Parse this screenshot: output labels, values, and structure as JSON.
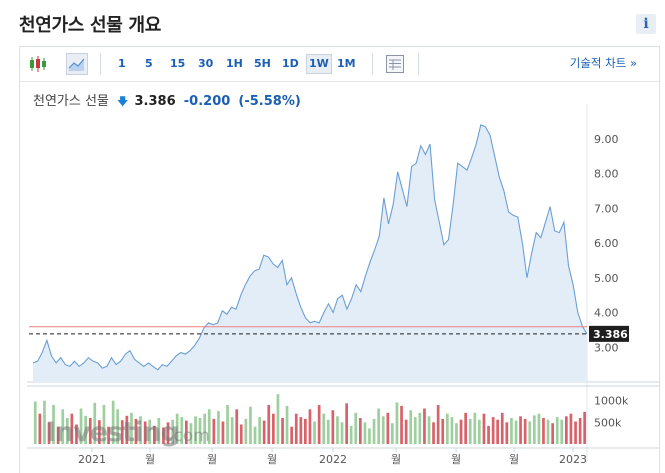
{
  "header": {
    "title": "천연가스 선물 개요",
    "info_label": "i"
  },
  "toolbar": {
    "candle_icon": "candlestick-icon",
    "area_icon": "area-chart-icon",
    "intervals": [
      "1",
      "5",
      "15",
      "30",
      "1H",
      "5H",
      "1D",
      "1W",
      "1M"
    ],
    "active_interval": "1W",
    "table_icon": "table-view-icon",
    "tech_chart_label": "기술적 차트 »"
  },
  "quote": {
    "name": "천연가스 선물",
    "price": "3.386",
    "change": "-0.200",
    "change_pct": "(-5.58%)",
    "direction_icon": "down-arrow-icon"
  },
  "colors": {
    "line": "#6b9fd4",
    "fill": "#e3edf8",
    "down": "#1a7fd6",
    "vol_up": "#9fcf9f",
    "vol_down": "#d9626a",
    "ref_line": "#f08080"
  },
  "chart_data": {
    "type": "area",
    "x_tick_labels": [
      "2021",
      "월",
      "월",
      "월",
      "2022",
      "월",
      "월",
      "월",
      "2023"
    ],
    "y_tick_labels": [
      "3.00",
      "4.00",
      "5.00",
      "6.00",
      "7.00",
      "8.00",
      "9.00"
    ],
    "ylim": [
      2.0,
      9.6
    ],
    "last_price_label": "3.386",
    "reference_line": 3.59,
    "values": [
      2.55,
      2.6,
      2.85,
      3.2,
      2.75,
      2.55,
      2.7,
      2.5,
      2.45,
      2.6,
      2.45,
      2.55,
      2.7,
      2.6,
      2.55,
      2.4,
      2.45,
      2.7,
      2.5,
      2.6,
      2.8,
      2.9,
      2.65,
      2.55,
      2.45,
      2.55,
      2.45,
      2.35,
      2.5,
      2.45,
      2.6,
      2.75,
      2.85,
      2.8,
      2.9,
      3.05,
      3.25,
      3.55,
      3.7,
      3.65,
      3.7,
      4.05,
      3.95,
      4.15,
      4.1,
      4.5,
      4.8,
      5.05,
      5.2,
      5.25,
      5.65,
      5.6,
      5.4,
      5.3,
      5.5,
      4.8,
      5.0,
      4.55,
      4.15,
      3.85,
      3.7,
      3.75,
      3.7,
      4.0,
      4.25,
      4.0,
      4.4,
      4.5,
      4.1,
      4.4,
      4.8,
      4.6,
      5.05,
      5.45,
      5.8,
      6.2,
      7.3,
      6.55,
      7.1,
      8.05,
      7.55,
      7.05,
      8.2,
      8.3,
      8.8,
      8.55,
      8.85,
      7.25,
      6.6,
      5.95,
      6.1,
      7.1,
      8.3,
      8.2,
      8.1,
      8.45,
      8.85,
      9.4,
      9.35,
      9.1,
      8.5,
      7.9,
      7.5,
      6.9,
      6.8,
      6.75,
      6.0,
      5.0,
      5.7,
      6.3,
      6.15,
      6.6,
      7.05,
      6.35,
      6.3,
      6.6,
      5.35,
      4.8,
      4.0,
      3.6,
      3.386
    ],
    "volume": {
      "tick_labels": [
        "1000k",
        "500k"
      ],
      "ylim": [
        0,
        1200
      ],
      "values": [
        980,
        700,
        1000,
        500,
        900,
        400,
        800,
        600,
        700,
        450,
        820,
        650,
        600,
        950,
        550,
        900,
        400,
        1000,
        800,
        550,
        650,
        720,
        580,
        640,
        520,
        560,
        420,
        600,
        380,
        500,
        560,
        700,
        620,
        540,
        480,
        640,
        600,
        700,
        800,
        580,
        760,
        520,
        900,
        620,
        800,
        450,
        580,
        860,
        400,
        620,
        540,
        900,
        700,
        1150,
        600,
        880,
        400,
        700,
        620,
        580,
        800,
        520,
        900,
        700,
        560,
        780,
        640,
        500,
        940,
        420,
        720,
        600,
        500,
        360,
        580,
        820,
        640,
        720,
        480,
        960,
        880,
        560,
        780,
        620,
        720,
        820,
        640,
        500,
        900,
        580,
        700,
        620,
        480,
        560,
        720,
        580,
        720,
        560,
        700,
        420,
        620,
        560,
        720,
        500,
        600,
        540,
        640,
        580,
        520,
        660,
        700,
        600,
        560,
        480,
        620,
        560,
        640,
        700,
        520,
        600,
        740
      ],
      "up": [
        1,
        0,
        1,
        0,
        1,
        0,
        1,
        1,
        0,
        0,
        1,
        1,
        0,
        1,
        0,
        1,
        0,
        1,
        1,
        0,
        0,
        1,
        0,
        1,
        0,
        1,
        0,
        1,
        0,
        0,
        1,
        1,
        1,
        0,
        1,
        1,
        1,
        1,
        1,
        0,
        1,
        0,
        1,
        1,
        0,
        0,
        1,
        1,
        1,
        1,
        0,
        0,
        0,
        1,
        0,
        1,
        0,
        0,
        0,
        0,
        0,
        1,
        0,
        1,
        1,
        0,
        1,
        1,
        0,
        1,
        1,
        0,
        1,
        1,
        1,
        1,
        1,
        0,
        1,
        1,
        0,
        0,
        1,
        1,
        1,
        0,
        1,
        0,
        0,
        0,
        1,
        1,
        1,
        0,
        0,
        1,
        1,
        1,
        0,
        0,
        0,
        0,
        0,
        0,
        1,
        1,
        0,
        0,
        1,
        1,
        1,
        0,
        1,
        0,
        1,
        1,
        0,
        0,
        0,
        0,
        0
      ]
    }
  },
  "watermark": {
    "brand": "Investing",
    "suffix": ".com"
  }
}
